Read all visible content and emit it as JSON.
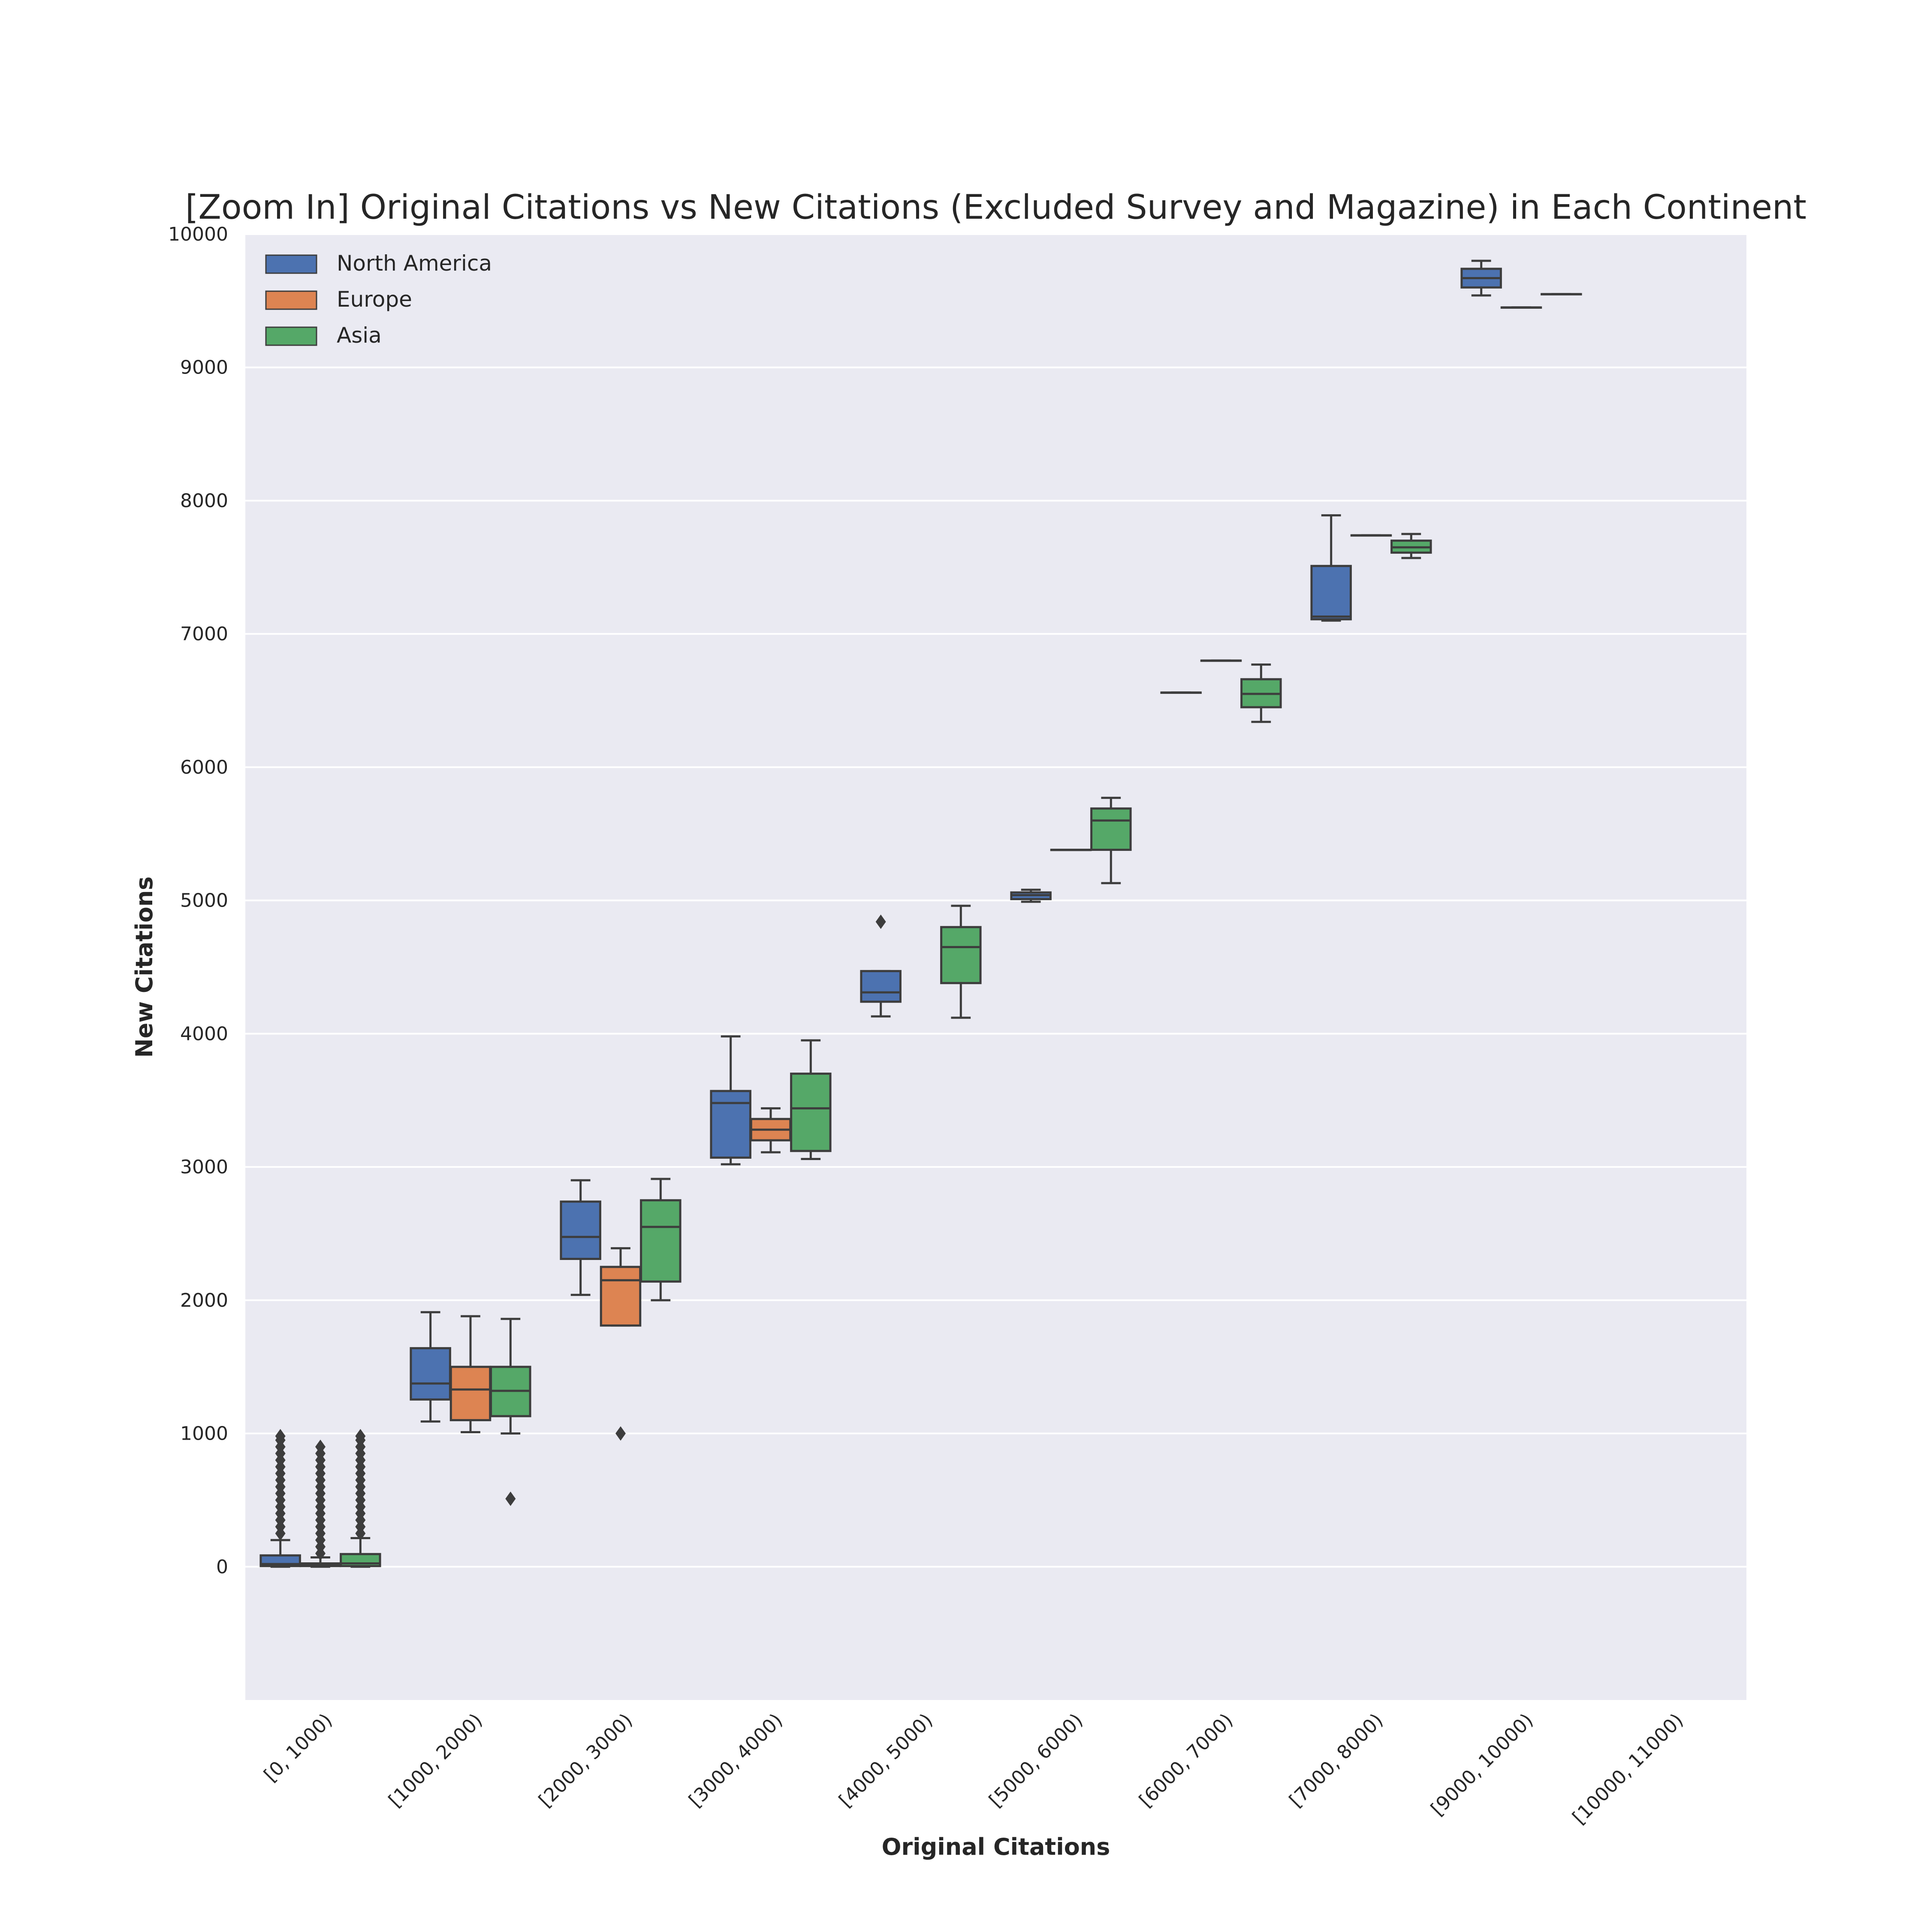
{
  "chart_data": {
    "type": "box",
    "title": "[Zoom In] Original Citations vs New Citations (Excluded Survey and Magazine) in Each Continent",
    "xlabel": "Original Citations",
    "ylabel": "New Citations",
    "ylim": [
      -1000,
      10000
    ],
    "yticks": [
      0,
      1000,
      2000,
      3000,
      4000,
      5000,
      6000,
      7000,
      8000,
      9000,
      10000
    ],
    "grid": true,
    "legend_position": "top-left",
    "categories": [
      "[0, 1000)",
      "[1000, 2000)",
      "[2000, 3000)",
      "[3000, 4000)",
      "[4000, 5000)",
      "[5000, 6000)",
      "[6000, 7000)",
      "[7000, 8000)",
      "[9000, 10000)",
      "[10000, 11000)"
    ],
    "series": [
      {
        "name": "North America",
        "color": "#4c72b0",
        "boxes": [
          {
            "category": 0,
            "whisker_low": 0,
            "q1": 5,
            "median": 20,
            "q3": 85,
            "whisker_high": 200,
            "outliers": [
              250,
              300,
              350,
              400,
              450,
              500,
              550,
              600,
              650,
              700,
              750,
              800,
              850,
              900,
              950,
              980
            ]
          },
          {
            "category": 1,
            "whisker_low": 1090,
            "q1": 1255,
            "median": 1375,
            "q3": 1640,
            "whisker_high": 1910,
            "outliers": []
          },
          {
            "category": 2,
            "whisker_low": 2040,
            "q1": 2310,
            "median": 2475,
            "q3": 2740,
            "whisker_high": 2900,
            "outliers": []
          },
          {
            "category": 3,
            "whisker_low": 3020,
            "q1": 3070,
            "median": 3480,
            "q3": 3570,
            "whisker_high": 3980,
            "outliers": []
          },
          {
            "category": 4,
            "whisker_low": 4130,
            "q1": 4240,
            "median": 4310,
            "q3": 4470,
            "whisker_high": 4470,
            "outliers": [
              4840
            ]
          },
          {
            "category": 5,
            "whisker_low": 4990,
            "q1": 5010,
            "median": 5040,
            "q3": 5060,
            "whisker_high": 5080,
            "outliers": []
          },
          {
            "category": 6,
            "whisker_low": 6560,
            "q1": 6560,
            "median": 6560,
            "q3": 6560,
            "whisker_high": 6560,
            "outliers": []
          },
          {
            "category": 7,
            "whisker_low": 7100,
            "q1": 7110,
            "median": 7130,
            "q3": 7510,
            "whisker_high": 7890,
            "outliers": []
          },
          {
            "category": 8,
            "whisker_low": 9540,
            "q1": 9600,
            "median": 9670,
            "q3": 9740,
            "whisker_high": 9800,
            "outliers": []
          }
        ]
      },
      {
        "name": "Europe",
        "color": "#dd8452",
        "boxes": [
          {
            "category": 0,
            "whisker_low": 0,
            "q1": 5,
            "median": 10,
            "q3": 25,
            "whisker_high": 70,
            "outliers": [
              100,
              150,
              200,
              250,
              300,
              350,
              400,
              450,
              500,
              550,
              600,
              650,
              700,
              750,
              800,
              850,
              900
            ]
          },
          {
            "category": 1,
            "whisker_low": 1010,
            "q1": 1100,
            "median": 1330,
            "q3": 1500,
            "whisker_high": 1880,
            "outliers": []
          },
          {
            "category": 2,
            "whisker_low": 1810,
            "q1": 1810,
            "median": 2150,
            "q3": 2250,
            "whisker_high": 2390,
            "outliers": [
              1000
            ]
          },
          {
            "category": 3,
            "whisker_low": 3110,
            "q1": 3200,
            "median": 3280,
            "q3": 3360,
            "whisker_high": 3440,
            "outliers": []
          },
          {
            "category": 5,
            "whisker_low": 5380,
            "q1": 5380,
            "median": 5380,
            "q3": 5380,
            "whisker_high": 5380,
            "outliers": []
          },
          {
            "category": 6,
            "whisker_low": 6800,
            "q1": 6800,
            "median": 6800,
            "q3": 6800,
            "whisker_high": 6800,
            "outliers": []
          },
          {
            "category": 7,
            "whisker_low": 7740,
            "q1": 7740,
            "median": 7740,
            "q3": 7740,
            "whisker_high": 7740,
            "outliers": []
          },
          {
            "category": 8,
            "whisker_low": 9450,
            "q1": 9450,
            "median": 9450,
            "q3": 9450,
            "whisker_high": 9450,
            "outliers": []
          }
        ]
      },
      {
        "name": "Asia",
        "color": "#55a868",
        "boxes": [
          {
            "category": 0,
            "whisker_low": 0,
            "q1": 5,
            "median": 25,
            "q3": 95,
            "whisker_high": 215,
            "outliers": [
              250,
              300,
              350,
              400,
              450,
              500,
              550,
              600,
              650,
              700,
              750,
              800,
              850,
              900,
              950,
              980
            ]
          },
          {
            "category": 1,
            "whisker_low": 1000,
            "q1": 1130,
            "median": 1320,
            "q3": 1500,
            "whisker_high": 1860,
            "outliers": [
              510
            ]
          },
          {
            "category": 2,
            "whisker_low": 2000,
            "q1": 2140,
            "median": 2550,
            "q3": 2750,
            "whisker_high": 2910,
            "outliers": []
          },
          {
            "category": 3,
            "whisker_low": 3060,
            "q1": 3120,
            "median": 3440,
            "q3": 3700,
            "whisker_high": 3950,
            "outliers": []
          },
          {
            "category": 4,
            "whisker_low": 4120,
            "q1": 4380,
            "median": 4650,
            "q3": 4800,
            "whisker_high": 4960,
            "outliers": []
          },
          {
            "category": 5,
            "whisker_low": 5130,
            "q1": 5380,
            "median": 5600,
            "q3": 5690,
            "whisker_high": 5770,
            "outliers": []
          },
          {
            "category": 6,
            "whisker_low": 6340,
            "q1": 6450,
            "median": 6550,
            "q3": 6660,
            "whisker_high": 6770,
            "outliers": []
          },
          {
            "category": 7,
            "whisker_low": 7570,
            "q1": 7610,
            "median": 7650,
            "q3": 7700,
            "whisker_high": 7750,
            "outliers": []
          },
          {
            "category": 8,
            "whisker_low": 9550,
            "q1": 9550,
            "median": 9550,
            "q3": 9550,
            "whisker_high": 9550,
            "outliers": []
          }
        ]
      }
    ]
  }
}
